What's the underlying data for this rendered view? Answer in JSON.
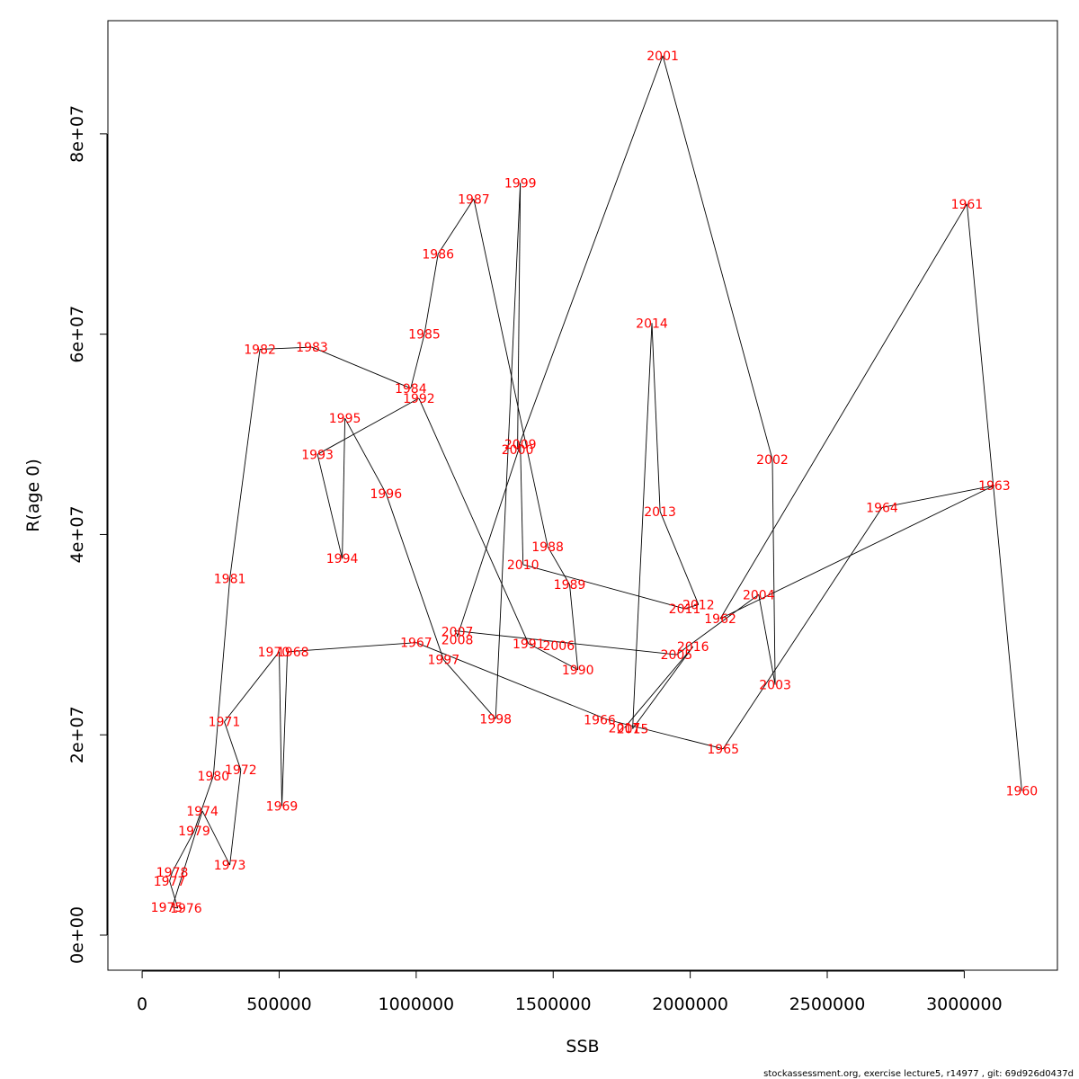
{
  "chart_data": {
    "type": "line",
    "xlabel": "SSB",
    "ylabel": "R(age 0)",
    "xlim": [
      -125000,
      3340000
    ],
    "ylim": [
      -3500000,
      91300000
    ],
    "x_ticks": [
      0,
      500000,
      1000000,
      1500000,
      2000000,
      2500000,
      3000000
    ],
    "x_tick_labels": [
      "0",
      "500000",
      "1000000",
      "1500000",
      "2000000",
      "2500000",
      "3000000"
    ],
    "y_ticks": [
      0,
      20000000,
      40000000,
      60000000,
      80000000
    ],
    "y_tick_labels": [
      "0e+00",
      "2e+07",
      "4e+07",
      "6e+07",
      "8e+07"
    ],
    "grid": false,
    "points": [
      {
        "year": "1960",
        "x": 3210000,
        "y": 14400000
      },
      {
        "year": "1961",
        "x": 3010000,
        "y": 73000000
      },
      {
        "year": "1962",
        "x": 2110000,
        "y": 31600000
      },
      {
        "year": "1963",
        "x": 3110000,
        "y": 44900000
      },
      {
        "year": "1964",
        "x": 2700000,
        "y": 42700000
      },
      {
        "year": "1965",
        "x": 2120000,
        "y": 18600000
      },
      {
        "year": "1966",
        "x": 1700000,
        "y": 21500000
      },
      {
        "year": "1967",
        "x": 1000000,
        "y": 29200000
      },
      {
        "year": "1968",
        "x": 530000,
        "y": 28300000
      },
      {
        "year": "1969",
        "x": 510000,
        "y": 12900000
      },
      {
        "year": "1970",
        "x": 500000,
        "y": 28300000
      },
      {
        "year": "1971",
        "x": 300000,
        "y": 21300000
      },
      {
        "year": "1972",
        "x": 360000,
        "y": 16500000
      },
      {
        "year": "1973",
        "x": 320000,
        "y": 7000000
      },
      {
        "year": "1974",
        "x": 220000,
        "y": 12400000
      },
      {
        "year": "1975",
        "x": 110000,
        "y": 2800000
      },
      {
        "year": "1976",
        "x": 130000,
        "y": 2700000
      },
      {
        "year": "1977",
        "x": 100000,
        "y": 5400000
      },
      {
        "year": "1978",
        "x": 110000,
        "y": 6300000
      },
      {
        "year": "1979",
        "x": 190000,
        "y": 10400000
      },
      {
        "year": "1980",
        "x": 260000,
        "y": 15900000
      },
      {
        "year": "1981",
        "x": 320000,
        "y": 35600000
      },
      {
        "year": "1982",
        "x": 430000,
        "y": 58500000
      },
      {
        "year": "1983",
        "x": 620000,
        "y": 58700000
      },
      {
        "year": "1984",
        "x": 980000,
        "y": 54600000
      },
      {
        "year": "1985",
        "x": 1030000,
        "y": 60000000
      },
      {
        "year": "1986",
        "x": 1080000,
        "y": 68000000
      },
      {
        "year": "1987",
        "x": 1210000,
        "y": 73500000
      },
      {
        "year": "1988",
        "x": 1480000,
        "y": 38800000
      },
      {
        "year": "1989",
        "x": 1560000,
        "y": 35000000
      },
      {
        "year": "1990",
        "x": 1590000,
        "y": 26500000
      },
      {
        "year": "1991",
        "x": 1410000,
        "y": 29100000
      },
      {
        "year": "1992",
        "x": 1010000,
        "y": 53600000
      },
      {
        "year": "1993",
        "x": 640000,
        "y": 48000000
      },
      {
        "year": "1994",
        "x": 730000,
        "y": 37600000
      },
      {
        "year": "1995",
        "x": 740000,
        "y": 51600000
      },
      {
        "year": "1996",
        "x": 890000,
        "y": 44100000
      },
      {
        "year": "1997",
        "x": 1100000,
        "y": 27500000
      },
      {
        "year": "1998",
        "x": 1290000,
        "y": 21600000
      },
      {
        "year": "1999",
        "x": 1380000,
        "y": 75100000
      },
      {
        "year": "2000",
        "x": 1370000,
        "y": 48500000
      },
      {
        "year": "2001",
        "x": 1900000,
        "y": 87800000
      },
      {
        "year": "2002",
        "x": 2300000,
        "y": 47500000
      },
      {
        "year": "2003",
        "x": 2310000,
        "y": 25000000
      },
      {
        "year": "2004",
        "x": 2250000,
        "y": 34000000
      },
      {
        "year": "2005",
        "x": 1950000,
        "y": 28000000
      },
      {
        "year": "2006",
        "x": 1140000,
        "y": 30400000
      },
      {
        "year": "2007",
        "x": 1150000,
        "y": 30000000
      },
      {
        "year": "2008",
        "x": 1150000,
        "y": 29800000
      },
      {
        "year": "2009",
        "x": 1380000,
        "y": 49000000
      },
      {
        "year": "2010",
        "x": 1390000,
        "y": 37000000
      },
      {
        "year": "2011",
        "x": 1980000,
        "y": 32600000
      },
      {
        "year": "2012",
        "x": 2030000,
        "y": 33000000
      },
      {
        "year": "2013",
        "x": 1890000,
        "y": 42300000
      },
      {
        "year": "2014",
        "x": 1860000,
        "y": 61100000
      },
      {
        "year": "2015",
        "x": 1790000,
        "y": 20600000
      },
      {
        "year": "2016",
        "x": 2010000,
        "y": 28800000
      },
      {
        "year": "2017",
        "x": 1760000,
        "y": 20700000
      }
    ],
    "label_offsets": {
      "1966": [
        -30000,
        0
      ],
      "1968": [
        20000,
        0
      ],
      "1970": [
        -20000,
        0
      ],
      "1976": [
        30000,
        0
      ],
      "1975": [
        -20000,
        0
      ],
      "2006": [
        380000,
        -1500000
      ],
      "2007": [
        0,
        300000
      ],
      "2008": [
        0,
        -300000
      ],
      "2015": [
        0,
        0
      ]
    }
  },
  "footer": "stockassessment.org, exercise  lecture5, r14977 , git: 69d926d0437d"
}
